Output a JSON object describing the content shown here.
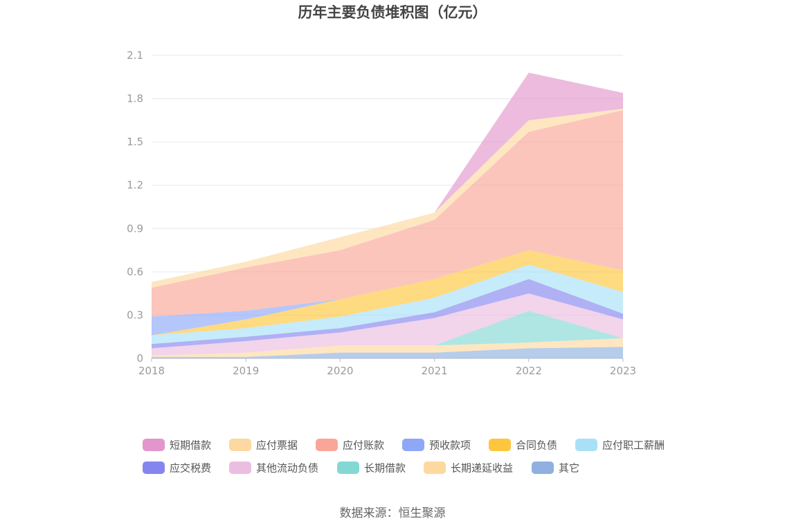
{
  "chart_data": {
    "type": "area",
    "stacked": true,
    "title": "历年主要负债堆积图（亿元）",
    "x": [
      "2018",
      "2019",
      "2020",
      "2021",
      "2022",
      "2023"
    ],
    "ylim": [
      0,
      2.1
    ],
    "yticks": [
      "0",
      "0.3",
      "0.6",
      "0.9",
      "1.2",
      "1.5",
      "1.8",
      "2.1"
    ],
    "grid": true,
    "legend_position": "bottom",
    "series": [
      {
        "name": "其它",
        "color": "#8fb0e0",
        "values": [
          0.01,
          0.01,
          0.04,
          0.04,
          0.07,
          0.08
        ]
      },
      {
        "name": "长期递延收益",
        "color": "#fdd9a0",
        "values": [
          0.01,
          0.03,
          0.05,
          0.05,
          0.04,
          0.06
        ]
      },
      {
        "name": "长期借款",
        "color": "#84d8d4",
        "values": [
          0,
          0,
          0,
          0,
          0.22,
          0
        ]
      },
      {
        "name": "其他流动负债",
        "color": "#ebbde0",
        "values": [
          0.05,
          0.08,
          0.09,
          0.19,
          0.12,
          0.13
        ]
      },
      {
        "name": "应交税费",
        "color": "#8585f0",
        "values": [
          0.03,
          0.03,
          0.03,
          0.04,
          0.1,
          0.04
        ]
      },
      {
        "name": "应付职工薪酬",
        "color": "#a8e1f7",
        "values": [
          0.06,
          0.06,
          0.08,
          0.1,
          0.1,
          0.15
        ]
      },
      {
        "name": "合同负债",
        "color": "#fdc63e",
        "values": [
          0,
          0.06,
          0.12,
          0.13,
          0.1,
          0.15
        ]
      },
      {
        "name": "预收款项",
        "color": "#8ea8f7",
        "values": [
          0.13,
          0.06,
          0,
          0,
          0,
          0
        ]
      },
      {
        "name": "应付账款",
        "color": "#f9a698",
        "values": [
          0.2,
          0.3,
          0.34,
          0.41,
          0.82,
          1.11
        ]
      },
      {
        "name": "应付票据",
        "color": "#fdd8a0",
        "values": [
          0.04,
          0.04,
          0.09,
          0.05,
          0.08,
          0.01
        ]
      },
      {
        "name": "短期借款",
        "color": "#e296cc",
        "values": [
          0,
          0,
          0,
          0,
          0.33,
          0.11
        ]
      }
    ],
    "legend_order": [
      "短期借款",
      "应付票据",
      "应付账款",
      "预收款项",
      "合同负债",
      "应付职工薪酬",
      "应交税费",
      "其他流动负债",
      "长期借款",
      "长期递延收益",
      "其它"
    ],
    "source": "数据来源：恒生聚源"
  }
}
